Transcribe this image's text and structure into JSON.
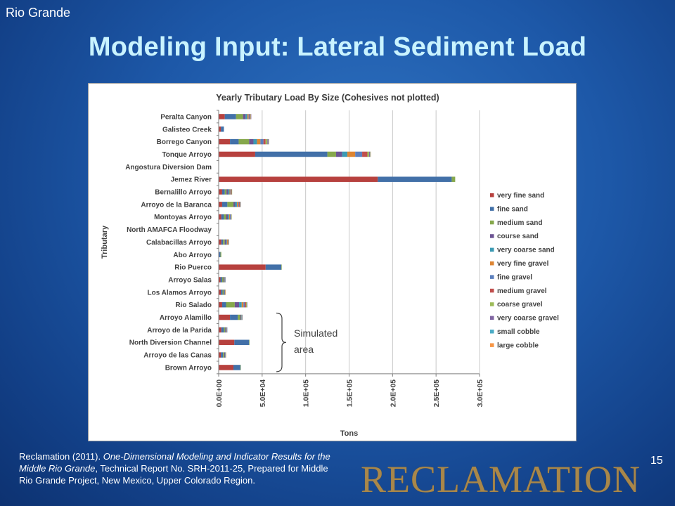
{
  "slide": {
    "section_label": "Rio Grande",
    "title": "Modeling Input: Lateral Sediment Load",
    "page_number": "15",
    "logo_text": "RECLAMATION"
  },
  "citation": {
    "prefix": "Reclamation (2011). ",
    "italic_title": "One-Dimensional Modeling and Indicator Results for the Middle Rio Grande",
    "suffix": ", Technical Report No. SRH-2011-25, Prepared for Middle Rio Grande Project, New Mexico, Upper Colorado Region."
  },
  "chart_data": {
    "type": "bar",
    "orientation": "horizontal",
    "stacked": true,
    "title": "Yearly Tributary Load By Size (Cohesives not plotted)",
    "xlabel": "Tons",
    "ylabel": "Tributary",
    "xlim": [
      0,
      300000
    ],
    "xticks": [
      0,
      50000,
      100000,
      150000,
      200000,
      250000,
      300000
    ],
    "xtick_labels": [
      "0.0E+00",
      "5.0E+04",
      "1.0E+05",
      "1.5E+05",
      "2.0E+05",
      "2.5E+05",
      "3.0E+05"
    ],
    "grid": "vertical",
    "legend_position": "right",
    "categories": [
      "Peralta Canyon",
      "Galisteo Creek",
      "Borrego Canyon",
      "Tonque Arroyo",
      "Angostura Diversion Dam",
      "Jemez River",
      "Bernalillo Arroyo",
      "Arroyo de la Baranca",
      "Montoyas Arroyo",
      "North AMAFCA Floodway",
      "Calabacillas Arroyo",
      "Abo Arroyo",
      "Rio Puerco",
      "Arroyo Salas",
      "Los Alamos Arroyo",
      "Rio Salado",
      "Arroyo Alamillo",
      "Arroyo de la Parida",
      "North Diversion Channel",
      "Arroyo de las Canas",
      "Brown Arroyo"
    ],
    "series": [
      {
        "name": "very fine sand",
        "color": "#b7413e",
        "values": [
          7000,
          2500,
          13000,
          42000,
          0,
          183000,
          4000,
          4000,
          3000,
          0,
          3000,
          500,
          54000,
          2000,
          2500,
          4000,
          13000,
          3000,
          18000,
          2500,
          17000
        ]
      },
      {
        "name": "fine sand",
        "color": "#4270a8",
        "values": [
          13000,
          3500,
          10000,
          83000,
          0,
          85000,
          3000,
          6000,
          3000,
          0,
          2000,
          1500,
          18000,
          2000,
          2000,
          4500,
          9000,
          3000,
          17000,
          2500,
          8000
        ]
      },
      {
        "name": "medium sand",
        "color": "#86a84c",
        "values": [
          8000,
          0,
          12000,
          10000,
          0,
          4000,
          2000,
          7000,
          2500,
          0,
          2000,
          1000,
          500,
          1500,
          1500,
          10000,
          3000,
          1500,
          500,
          1500,
          500
        ]
      },
      {
        "name": "course sand",
        "color": "#6c5493",
        "values": [
          3000,
          0,
          5000,
          7000,
          0,
          0,
          2000,
          2000,
          2000,
          0,
          1500,
          0,
          0,
          1000,
          1000,
          5000,
          1000,
          1000,
          0,
          1000,
          0
        ]
      },
      {
        "name": "very coarse sand",
        "color": "#3c9ab3",
        "values": [
          2000,
          0,
          4000,
          6000,
          0,
          0,
          1500,
          2000,
          1500,
          0,
          1000,
          0,
          0,
          500,
          500,
          3000,
          500,
          500,
          0,
          500,
          0
        ]
      },
      {
        "name": "very fine gravel",
        "color": "#dd8533",
        "values": [
          1500,
          0,
          4000,
          9000,
          0,
          0,
          1000,
          1500,
          1000,
          0,
          1000,
          0,
          0,
          500,
          500,
          2000,
          500,
          500,
          0,
          500,
          0
        ]
      },
      {
        "name": "fine gravel",
        "color": "#5c7fbd",
        "values": [
          1000,
          0,
          3500,
          8000,
          0,
          0,
          1000,
          1000,
          1000,
          0,
          500,
          0,
          0,
          500,
          0,
          1500,
          500,
          500,
          0,
          0,
          0
        ]
      },
      {
        "name": "medium gravel",
        "color": "#c04f4d",
        "values": [
          1000,
          0,
          2500,
          6000,
          0,
          0,
          500,
          1000,
          500,
          0,
          500,
          0,
          0,
          0,
          0,
          1500,
          0,
          0,
          0,
          0,
          0
        ]
      },
      {
        "name": "coarse gravel",
        "color": "#9cbb59",
        "values": [
          500,
          0,
          2000,
          2000,
          0,
          0,
          500,
          500,
          500,
          0,
          500,
          0,
          0,
          0,
          0,
          1000,
          0,
          0,
          0,
          0,
          0
        ]
      },
      {
        "name": "very coarse gravel",
        "color": "#8065a2",
        "values": [
          500,
          0,
          1000,
          1000,
          0,
          0,
          0,
          500,
          0,
          0,
          0,
          0,
          0,
          0,
          0,
          500,
          0,
          0,
          0,
          0,
          0
        ]
      },
      {
        "name": "small cobble",
        "color": "#4bacc6",
        "values": [
          0,
          0,
          500,
          500,
          0,
          0,
          0,
          0,
          0,
          0,
          0,
          0,
          0,
          0,
          0,
          0,
          0,
          0,
          0,
          0,
          0
        ]
      },
      {
        "name": "large cobble",
        "color": "#f79646",
        "values": [
          0,
          0,
          500,
          500,
          0,
          0,
          0,
          0,
          0,
          0,
          0,
          0,
          0,
          0,
          0,
          0,
          0,
          0,
          0,
          0,
          0
        ]
      }
    ],
    "annotation": {
      "text_line1": "Simulated",
      "text_line2": "area",
      "applies_to": [
        "Arroyo Alamillo",
        "Arroyo de la Parida",
        "North Diversion Channel",
        "Arroyo de las Canas",
        "Brown Arroyo"
      ]
    }
  }
}
